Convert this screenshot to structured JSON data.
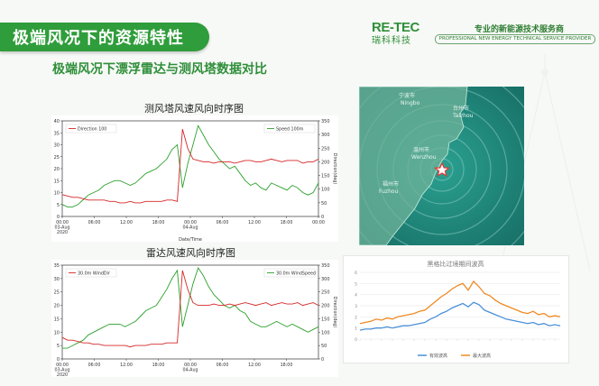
{
  "header": {
    "title": "极端风况下的资源特性",
    "logo_mark": "RE-TEC",
    "logo_sub": "瑞科科技",
    "tagline_cn": "专业的新能源技术服务商",
    "tagline_en": "PROFESSIONAL NEW ENERGY TECHNICAL SERVICE PROVIDER"
  },
  "subtitle": "极端风况下漂浮雷达与测风塔数据对比",
  "chart1": {
    "title": "测风塔风速风向时序图",
    "legend_left": "Direction 100",
    "legend_right": "Speed 100m",
    "ylabel_left": "Speed(m/s)",
    "ylabel_right": "Direction(deg)",
    "xlabel": "Date/Time",
    "xticks": [
      "00:00\n03-Aug\n2020",
      "06:00",
      "12:00",
      "18:00",
      "00:00\n04-Aug",
      "06:00",
      "12:00",
      "18:00",
      "00:00"
    ],
    "yticks_left": [
      "0",
      "5",
      "10",
      "15",
      "20",
      "25",
      "30",
      "35",
      "40"
    ],
    "yticks_right": [
      "0",
      "50",
      "100",
      "150",
      "200",
      "250",
      "300",
      "350"
    ]
  },
  "chart2": {
    "title": "雷达风速风向时序图",
    "legend_left": "30.0m WindDir",
    "legend_right": "30.0m WindSpeed",
    "ylabel_left": "Speed(m/s)",
    "ylabel_right": "Direction(deg)",
    "xticks": [
      "00:00\n03-Aug\n2020",
      "06:00",
      "12:00",
      "18:00",
      "00:00\n04-Aug",
      "06:00",
      "12:00",
      "18:00"
    ],
    "yticks_left": [
      "0",
      "5",
      "10",
      "15",
      "20",
      "25",
      "30",
      "35"
    ],
    "yticks_right": [
      "0",
      "50",
      "100",
      "150",
      "200",
      "250",
      "300",
      "350"
    ]
  },
  "map": {
    "labels": [
      "Ningbo",
      "Taizhou",
      "Wenzhou",
      "Fuzhou"
    ],
    "labels_cn": [
      "宁波市",
      "台州市",
      "温州市",
      "福州市"
    ],
    "colors": {
      "sea": "#1f8a7e",
      "land": "#6fb39a",
      "swirl": "#9fd8cf"
    },
    "marker": "red-star"
  },
  "wave_chart": {
    "title": "黑格比过境期间波高",
    "legend": [
      "有效波高",
      "最大波高"
    ],
    "colors": {
      "significant": "#4a90d9",
      "max": "#f08a24"
    },
    "yticks": [
      "0",
      "1",
      "2",
      "3",
      "4",
      "5",
      "6"
    ]
  },
  "chart_data": [
    {
      "type": "line",
      "title": "测风塔风速风向时序图",
      "xlabel": "Date/Time",
      "ylabel": "Speed(m/s)",
      "ylim": [
        0,
        40
      ],
      "y2lim": [
        0,
        350
      ],
      "series": [
        {
          "name": "Speed 100m",
          "axis": "left",
          "color": "#2ca02c",
          "values": [
            5,
            4,
            4,
            5,
            7,
            9,
            10,
            11,
            13,
            14,
            15,
            15,
            14,
            13,
            14,
            16,
            18,
            19,
            20,
            22,
            24,
            28,
            30,
            12,
            22,
            30,
            38,
            34,
            30,
            27,
            24,
            22,
            20,
            21,
            18,
            15,
            13,
            14,
            12,
            11,
            14,
            13,
            12,
            11,
            13,
            12,
            10,
            9,
            10,
            14
          ]
        },
        {
          "name": "Direction 100",
          "axis": "right",
          "color": "#d62728",
          "values": [
            80,
            75,
            70,
            70,
            65,
            60,
            60,
            60,
            60,
            55,
            55,
            50,
            50,
            55,
            50,
            50,
            55,
            55,
            55,
            55,
            60,
            60,
            55,
            320,
            250,
            210,
            205,
            200,
            200,
            195,
            200,
            200,
            200,
            195,
            200,
            205,
            205,
            200,
            200,
            205,
            210,
            205,
            200,
            205,
            205,
            205,
            195,
            200,
            200,
            210
          ]
        }
      ]
    },
    {
      "type": "line",
      "title": "雷达风速风向时序图",
      "ylabel": "Speed(m/s)",
      "ylim": [
        0,
        35
      ],
      "y2lim": [
        0,
        350
      ],
      "series": [
        {
          "name": "30.0m WindSpeed",
          "axis": "left",
          "color": "#2ca02c",
          "values": [
            4,
            4,
            5,
            6,
            7,
            9,
            10,
            11,
            12,
            13,
            13,
            13,
            12,
            13,
            14,
            16,
            18,
            19,
            20,
            23,
            26,
            30,
            33,
            12,
            20,
            28,
            34,
            31,
            27,
            24,
            22,
            20,
            19,
            20,
            18,
            17,
            14,
            13,
            12,
            12,
            13,
            14,
            13,
            12,
            13,
            12,
            11,
            10,
            11,
            12
          ]
        },
        {
          "name": "30.0m WindDir",
          "axis": "right",
          "color": "#d62728",
          "values": [
            80,
            70,
            70,
            65,
            60,
            60,
            55,
            55,
            50,
            50,
            50,
            50,
            50,
            45,
            50,
            50,
            50,
            55,
            55,
            55,
            60,
            60,
            60,
            330,
            260,
            210,
            200,
            200,
            200,
            205,
            200,
            200,
            205,
            200,
            205,
            210,
            205,
            200,
            205,
            210,
            200,
            205,
            210,
            205,
            205,
            210,
            200,
            205,
            210,
            200
          ]
        }
      ]
    },
    {
      "type": "line",
      "title": "黑格比过境期间波高",
      "ylim": [
        0,
        6
      ],
      "series": [
        {
          "name": "有效波高",
          "color": "#4a90d9",
          "values": [
            0.8,
            0.9,
            0.9,
            1.0,
            1.0,
            1.1,
            1.0,
            1.1,
            1.2,
            1.2,
            1.3,
            1.4,
            1.5,
            1.8,
            2.0,
            2.3,
            2.5,
            2.8,
            3.0,
            3.2,
            2.9,
            3.3,
            3.1,
            2.6,
            2.4,
            2.2,
            2.0,
            1.8,
            1.7,
            1.6,
            1.5,
            1.4,
            1.5,
            1.3,
            1.4,
            1.2,
            1.3,
            1.2
          ]
        },
        {
          "name": "最大波高",
          "color": "#f08a24",
          "values": [
            1.4,
            1.5,
            1.6,
            1.8,
            1.7,
            1.9,
            1.8,
            2.0,
            2.1,
            2.2,
            2.3,
            2.5,
            2.6,
            3.0,
            3.4,
            3.8,
            4.1,
            4.5,
            4.8,
            5.0,
            4.4,
            5.2,
            4.7,
            4.1,
            3.9,
            3.5,
            3.2,
            3.0,
            2.8,
            2.6,
            2.4,
            2.3,
            2.5,
            2.2,
            2.3,
            2.0,
            2.1,
            2.0
          ]
        }
      ]
    }
  ]
}
